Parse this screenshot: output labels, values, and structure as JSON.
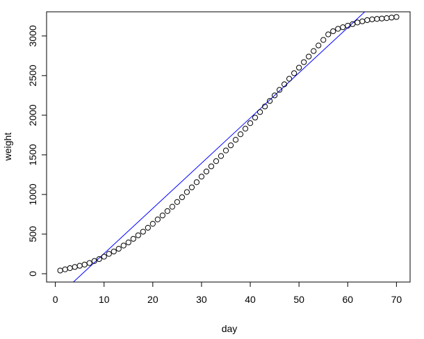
{
  "chart_data": {
    "type": "scatter",
    "title": "",
    "xlabel": "day",
    "ylabel": "weight",
    "xlim": [
      -1.8,
      72.8
    ],
    "ylim": [
      -105,
      3305
    ],
    "xticks": [
      0,
      10,
      20,
      30,
      40,
      50,
      60,
      70
    ],
    "yticks": [
      0,
      500,
      1000,
      1500,
      2000,
      2500,
      3000
    ],
    "grid": false,
    "points_color": "#000000",
    "fit_line": {
      "color": "#0000ff",
      "x": [
        3.7,
        63.5
      ],
      "y": [
        -105,
        3305
      ]
    },
    "x": [
      1,
      2,
      3,
      4,
      5,
      6,
      7,
      8,
      9,
      10,
      11,
      12,
      13,
      14,
      15,
      16,
      17,
      18,
      19,
      20,
      21,
      22,
      23,
      24,
      25,
      26,
      27,
      28,
      29,
      30,
      31,
      32,
      33,
      34,
      35,
      36,
      37,
      38,
      39,
      40,
      41,
      42,
      43,
      44,
      45,
      46,
      47,
      48,
      49,
      50,
      51,
      52,
      53,
      54,
      55,
      56,
      57,
      58,
      59,
      60,
      61,
      62,
      63,
      64,
      65,
      66,
      67,
      68,
      69,
      70
    ],
    "y": [
      40,
      55,
      70,
      85,
      100,
      115,
      135,
      160,
      185,
      215,
      250,
      280,
      315,
      355,
      395,
      440,
      485,
      530,
      580,
      630,
      685,
      735,
      790,
      845,
      905,
      965,
      1030,
      1090,
      1155,
      1225,
      1290,
      1355,
      1420,
      1485,
      1555,
      1620,
      1690,
      1760,
      1830,
      1900,
      1970,
      2040,
      2110,
      2180,
      2250,
      2320,
      2390,
      2460,
      2530,
      2600,
      2670,
      2740,
      2810,
      2880,
      2950,
      3020,
      3060,
      3090,
      3110,
      3130,
      3150,
      3170,
      3185,
      3200,
      3210,
      3215,
      3220,
      3225,
      3232,
      3240
    ]
  }
}
